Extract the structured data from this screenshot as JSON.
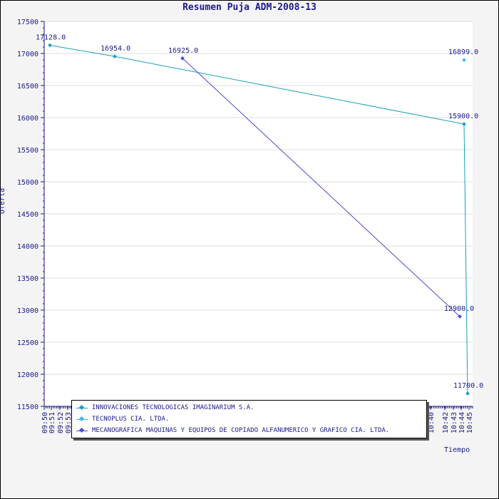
{
  "chart_data": {
    "type": "line",
    "title": "Resumen Puja ADM-2008-13",
    "xlabel": "Tiempo",
    "ylabel": "Oferta",
    "ylim": [
      11500,
      17500
    ],
    "yticks": [
      11500,
      12000,
      12500,
      13000,
      13500,
      14000,
      14500,
      15000,
      15500,
      16000,
      16500,
      17000,
      17500
    ],
    "xticks": [
      "09:50",
      "09:51",
      "09:52",
      "09:53",
      "10:40",
      "10:42",
      "10:43",
      "10:44",
      "10:45"
    ],
    "grid": true,
    "legend_position": "bottom-left",
    "series": [
      {
        "name": "INNOVACIONES TECNOLOGICAS IMAGINARIUM S.A.",
        "color": "#1a9fb8",
        "points": [
          {
            "x": "09:50",
            "y": 17128.0,
            "label": "17128.0"
          },
          {
            "x": "09:51",
            "y": 16954.0,
            "label": "16954.0"
          },
          {
            "x": "10:44",
            "y": 15900.0,
            "label": "15900.0"
          },
          {
            "x": "10:45",
            "y": 11700.0,
            "label": "11700.0"
          }
        ]
      },
      {
        "name": "TECNOPLUS CIA. LTDA.",
        "color": "#3cb8e0",
        "points": [
          {
            "x": "10:44",
            "y": 16899.0,
            "label": "16899.0"
          }
        ]
      },
      {
        "name": "MECANOGRAFICA MAQUINAS Y EQUIPOS DE COPIADO ALFANUMERICO Y GRAFICO CIA. LTDA.",
        "color": "#4a4ad0",
        "points": [
          {
            "x": "09:52",
            "y": 16925.0,
            "label": "16925.0"
          },
          {
            "x": "10:43",
            "y": 12900.0,
            "label": "12900.0"
          }
        ]
      }
    ]
  }
}
